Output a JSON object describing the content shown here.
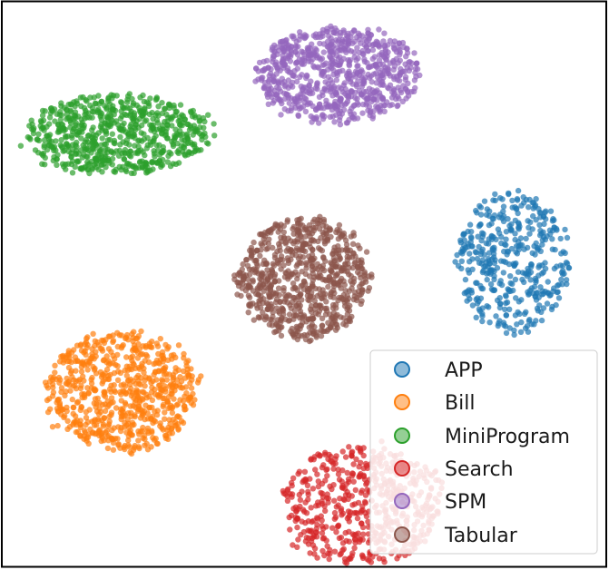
{
  "chart_data": {
    "type": "scatter",
    "title": "",
    "xlabel": "",
    "ylabel": "",
    "grid": false,
    "axes_ticks": false,
    "legend_placement": "bottom-right",
    "xlim": [
      -100,
      100
    ],
    "ylim": [
      -100,
      100
    ],
    "series": [
      {
        "name": "APP",
        "color": "#1f77b4",
        "center": [
          69,
          8
        ],
        "spread": [
          12,
          16
        ],
        "count": 420
      },
      {
        "name": "Bill",
        "color": "#ff7f0e",
        "center": [
          -60,
          -38
        ],
        "spread": [
          16,
          14
        ],
        "count": 700
      },
      {
        "name": "MiniProgram",
        "color": "#2ca02c",
        "center": [
          -62,
          53
        ],
        "spread": [
          20,
          9
        ],
        "count": 700
      },
      {
        "name": "Search",
        "color": "#d62728",
        "center": [
          19,
          -78
        ],
        "spread": [
          17,
          14
        ],
        "count": 560
      },
      {
        "name": "SPM",
        "color": "#9467bd",
        "center": [
          11,
          74
        ],
        "spread": [
          17,
          11
        ],
        "count": 780
      },
      {
        "name": "Tabular",
        "color": "#8c564b",
        "center": [
          0,
          2
        ],
        "spread": [
          14,
          14
        ],
        "count": 760
      }
    ]
  }
}
